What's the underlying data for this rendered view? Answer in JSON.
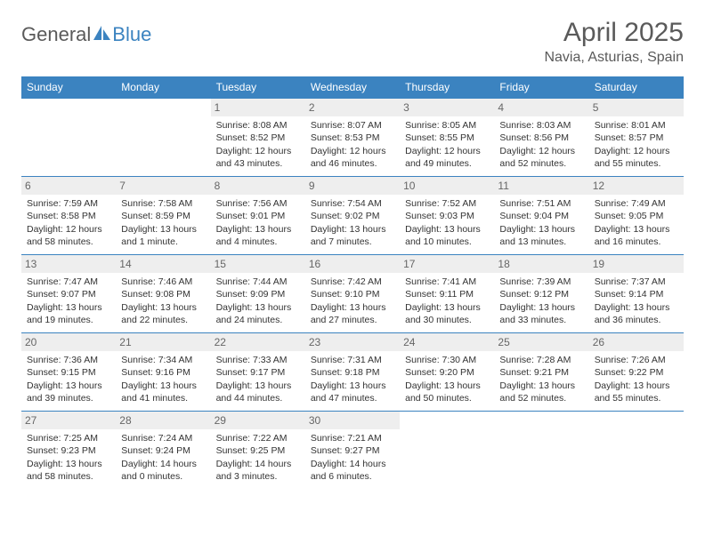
{
  "brand": {
    "part1": "General",
    "part2": "Blue",
    "logo_color": "#3b83c0",
    "text_color": "#5a5a5a"
  },
  "title": "April 2025",
  "location": "Navia, Asturias, Spain",
  "header_bg": "#3b83c0",
  "header_fg": "#ffffff",
  "daynum_bg": "#eeeeee",
  "border_color": "#3b83c0",
  "weekdays": [
    "Sunday",
    "Monday",
    "Tuesday",
    "Wednesday",
    "Thursday",
    "Friday",
    "Saturday"
  ],
  "weeks": [
    [
      {
        "day": "",
        "lines": []
      },
      {
        "day": "",
        "lines": []
      },
      {
        "day": "1",
        "lines": [
          "Sunrise: 8:08 AM",
          "Sunset: 8:52 PM",
          "Daylight: 12 hours",
          "and 43 minutes."
        ]
      },
      {
        "day": "2",
        "lines": [
          "Sunrise: 8:07 AM",
          "Sunset: 8:53 PM",
          "Daylight: 12 hours",
          "and 46 minutes."
        ]
      },
      {
        "day": "3",
        "lines": [
          "Sunrise: 8:05 AM",
          "Sunset: 8:55 PM",
          "Daylight: 12 hours",
          "and 49 minutes."
        ]
      },
      {
        "day": "4",
        "lines": [
          "Sunrise: 8:03 AM",
          "Sunset: 8:56 PM",
          "Daylight: 12 hours",
          "and 52 minutes."
        ]
      },
      {
        "day": "5",
        "lines": [
          "Sunrise: 8:01 AM",
          "Sunset: 8:57 PM",
          "Daylight: 12 hours",
          "and 55 minutes."
        ]
      }
    ],
    [
      {
        "day": "6",
        "lines": [
          "Sunrise: 7:59 AM",
          "Sunset: 8:58 PM",
          "Daylight: 12 hours",
          "and 58 minutes."
        ]
      },
      {
        "day": "7",
        "lines": [
          "Sunrise: 7:58 AM",
          "Sunset: 8:59 PM",
          "Daylight: 13 hours",
          "and 1 minute."
        ]
      },
      {
        "day": "8",
        "lines": [
          "Sunrise: 7:56 AM",
          "Sunset: 9:01 PM",
          "Daylight: 13 hours",
          "and 4 minutes."
        ]
      },
      {
        "day": "9",
        "lines": [
          "Sunrise: 7:54 AM",
          "Sunset: 9:02 PM",
          "Daylight: 13 hours",
          "and 7 minutes."
        ]
      },
      {
        "day": "10",
        "lines": [
          "Sunrise: 7:52 AM",
          "Sunset: 9:03 PM",
          "Daylight: 13 hours",
          "and 10 minutes."
        ]
      },
      {
        "day": "11",
        "lines": [
          "Sunrise: 7:51 AM",
          "Sunset: 9:04 PM",
          "Daylight: 13 hours",
          "and 13 minutes."
        ]
      },
      {
        "day": "12",
        "lines": [
          "Sunrise: 7:49 AM",
          "Sunset: 9:05 PM",
          "Daylight: 13 hours",
          "and 16 minutes."
        ]
      }
    ],
    [
      {
        "day": "13",
        "lines": [
          "Sunrise: 7:47 AM",
          "Sunset: 9:07 PM",
          "Daylight: 13 hours",
          "and 19 minutes."
        ]
      },
      {
        "day": "14",
        "lines": [
          "Sunrise: 7:46 AM",
          "Sunset: 9:08 PM",
          "Daylight: 13 hours",
          "and 22 minutes."
        ]
      },
      {
        "day": "15",
        "lines": [
          "Sunrise: 7:44 AM",
          "Sunset: 9:09 PM",
          "Daylight: 13 hours",
          "and 24 minutes."
        ]
      },
      {
        "day": "16",
        "lines": [
          "Sunrise: 7:42 AM",
          "Sunset: 9:10 PM",
          "Daylight: 13 hours",
          "and 27 minutes."
        ]
      },
      {
        "day": "17",
        "lines": [
          "Sunrise: 7:41 AM",
          "Sunset: 9:11 PM",
          "Daylight: 13 hours",
          "and 30 minutes."
        ]
      },
      {
        "day": "18",
        "lines": [
          "Sunrise: 7:39 AM",
          "Sunset: 9:12 PM",
          "Daylight: 13 hours",
          "and 33 minutes."
        ]
      },
      {
        "day": "19",
        "lines": [
          "Sunrise: 7:37 AM",
          "Sunset: 9:14 PM",
          "Daylight: 13 hours",
          "and 36 minutes."
        ]
      }
    ],
    [
      {
        "day": "20",
        "lines": [
          "Sunrise: 7:36 AM",
          "Sunset: 9:15 PM",
          "Daylight: 13 hours",
          "and 39 minutes."
        ]
      },
      {
        "day": "21",
        "lines": [
          "Sunrise: 7:34 AM",
          "Sunset: 9:16 PM",
          "Daylight: 13 hours",
          "and 41 minutes."
        ]
      },
      {
        "day": "22",
        "lines": [
          "Sunrise: 7:33 AM",
          "Sunset: 9:17 PM",
          "Daylight: 13 hours",
          "and 44 minutes."
        ]
      },
      {
        "day": "23",
        "lines": [
          "Sunrise: 7:31 AM",
          "Sunset: 9:18 PM",
          "Daylight: 13 hours",
          "and 47 minutes."
        ]
      },
      {
        "day": "24",
        "lines": [
          "Sunrise: 7:30 AM",
          "Sunset: 9:20 PM",
          "Daylight: 13 hours",
          "and 50 minutes."
        ]
      },
      {
        "day": "25",
        "lines": [
          "Sunrise: 7:28 AM",
          "Sunset: 9:21 PM",
          "Daylight: 13 hours",
          "and 52 minutes."
        ]
      },
      {
        "day": "26",
        "lines": [
          "Sunrise: 7:26 AM",
          "Sunset: 9:22 PM",
          "Daylight: 13 hours",
          "and 55 minutes."
        ]
      }
    ],
    [
      {
        "day": "27",
        "lines": [
          "Sunrise: 7:25 AM",
          "Sunset: 9:23 PM",
          "Daylight: 13 hours",
          "and 58 minutes."
        ]
      },
      {
        "day": "28",
        "lines": [
          "Sunrise: 7:24 AM",
          "Sunset: 9:24 PM",
          "Daylight: 14 hours",
          "and 0 minutes."
        ]
      },
      {
        "day": "29",
        "lines": [
          "Sunrise: 7:22 AM",
          "Sunset: 9:25 PM",
          "Daylight: 14 hours",
          "and 3 minutes."
        ]
      },
      {
        "day": "30",
        "lines": [
          "Sunrise: 7:21 AM",
          "Sunset: 9:27 PM",
          "Daylight: 14 hours",
          "and 6 minutes."
        ]
      },
      {
        "day": "",
        "lines": []
      },
      {
        "day": "",
        "lines": []
      },
      {
        "day": "",
        "lines": []
      }
    ]
  ]
}
